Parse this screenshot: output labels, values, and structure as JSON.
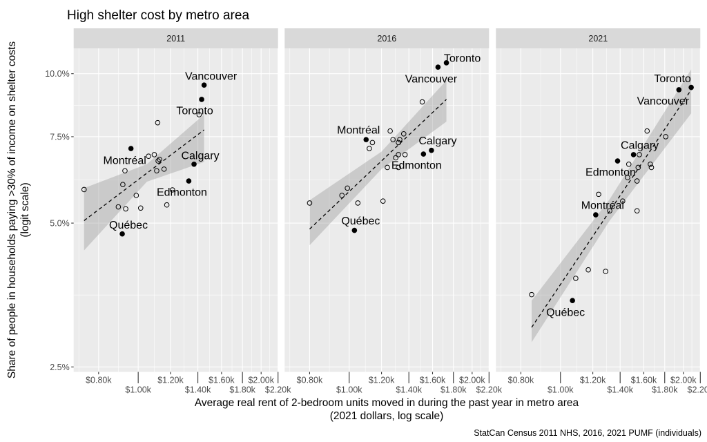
{
  "chart_data": {
    "type": "scatter",
    "title": "High shelter cost by metro area",
    "xlabel": [
      "Average real rent of 2-bedroom units moved in during the past year in metro area",
      "(2021 dollars, log scale)"
    ],
    "ylabel": [
      "Share of people in households paying >30% of income on shelter costs",
      "(logit scale)"
    ],
    "caption": "StatCan Census 2011 NHS, 2016, 2021 PUMF (individuals)",
    "x_scale": "log",
    "y_scale": "logit",
    "x_units": "thousand 2021 dollars",
    "y_units": "percent",
    "xlim": [
      0.695,
      2.2
    ],
    "ylim": [
      2.44,
      11.2
    ],
    "x_ticks": [
      {
        "value": 0.8,
        "label": "$0.80k"
      },
      {
        "value": 1.0,
        "label": "$1.00k"
      },
      {
        "value": 1.2,
        "label": "$1.20k"
      },
      {
        "value": 1.4,
        "label": "$1.40k"
      },
      {
        "value": 1.6,
        "label": "$1.60k"
      },
      {
        "value": 1.8,
        "label": "$1.80k"
      },
      {
        "value": 2.0,
        "label": "$2.00k"
      },
      {
        "value": 2.2,
        "label": "$2.20k"
      }
    ],
    "y_ticks": [
      {
        "value": 10.0,
        "label": "10.0%"
      },
      {
        "value": 7.5,
        "label": "7.5%"
      },
      {
        "value": 5.0,
        "label": "5.0%"
      },
      {
        "value": 2.5,
        "label": "2.5%"
      }
    ],
    "grid": true,
    "legend": "none",
    "facets": [
      {
        "label": "2011",
        "labeled_points": [
          {
            "name": "Vancouver",
            "x": 1.45,
            "y": 9.5
          },
          {
            "name": "Toronto",
            "x": 1.43,
            "y": 8.9
          },
          {
            "name": "Calgary",
            "x": 1.37,
            "y": 6.6
          },
          {
            "name": "Edmonton",
            "x": 1.33,
            "y": 6.1
          },
          {
            "name": "Montréal",
            "x": 0.96,
            "y": 7.1
          },
          {
            "name": "Québec",
            "x": 0.914,
            "y": 4.75
          }
        ],
        "other_points": [
          [
            0.737,
            5.86
          ],
          [
            1.116,
            8.0
          ],
          [
            1.41,
            8.3
          ],
          [
            1.06,
            6.85
          ],
          [
            1.095,
            6.9
          ],
          [
            1.128,
            6.75
          ],
          [
            1.119,
            6.7
          ],
          [
            0.928,
            6.4
          ],
          [
            1.11,
            6.4
          ],
          [
            1.157,
            6.45
          ],
          [
            0.917,
            6.0
          ],
          [
            0.989,
            5.7
          ],
          [
            1.213,
            5.85
          ],
          [
            0.894,
            5.4
          ],
          [
            0.932,
            5.35
          ],
          [
            1.014,
            5.37
          ],
          [
            1.175,
            5.45
          ]
        ],
        "fit": {
          "line": [
            [
              0.737,
              5.06
            ],
            [
              1.45,
              7.74
            ]
          ],
          "band": [
            {
              "x": 0.737,
              "lo": 4.39,
              "hi": 5.9
            },
            {
              "x": 1.05,
              "lo": 6.08,
              "hi": 6.6
            },
            {
              "x": 1.45,
              "lo": 6.67,
              "hi": 8.31
            }
          ]
        }
      },
      {
        "label": "2016",
        "labeled_points": [
          {
            "name": "Toronto",
            "x": 1.73,
            "y": 10.5
          },
          {
            "name": "Vancouver",
            "x": 1.65,
            "y": 10.3
          },
          {
            "name": "Calgary",
            "x": 1.59,
            "y": 7.04
          },
          {
            "name": "Edmonton",
            "x": 1.52,
            "y": 6.92
          },
          {
            "name": "Montréal",
            "x": 1.1,
            "y": 7.4
          },
          {
            "name": "Québec",
            "x": 1.03,
            "y": 4.83
          }
        ],
        "other_points": [
          [
            1.51,
            8.8
          ],
          [
            1.26,
            7.7
          ],
          [
            1.36,
            7.6
          ],
          [
            1.28,
            7.4
          ],
          [
            1.33,
            7.4
          ],
          [
            1.32,
            7.3
          ],
          [
            1.14,
            7.3
          ],
          [
            1.12,
            7.1
          ],
          [
            1.32,
            6.9
          ],
          [
            1.37,
            6.9
          ],
          [
            1.3,
            6.8
          ],
          [
            1.24,
            6.5
          ],
          [
            1.32,
            6.5
          ],
          [
            0.99,
            5.9
          ],
          [
            0.96,
            5.7
          ],
          [
            0.8,
            5.5
          ],
          [
            1.05,
            5.5
          ],
          [
            1.21,
            5.55
          ]
        ],
        "fit": {
          "line": [
            [
              0.8,
              4.86
            ],
            [
              1.73,
              8.9
            ]
          ],
          "band": [
            {
              "x": 0.8,
              "lo": 4.5,
              "hi": 5.57
            },
            {
              "x": 1.2,
              "lo": 6.45,
              "hi": 7.0
            },
            {
              "x": 1.73,
              "lo": 8.04,
              "hi": 9.7
            }
          ]
        }
      },
      {
        "label": "2021",
        "labeled_points": [
          {
            "name": "Toronto",
            "x": 2.09,
            "y": 9.4
          },
          {
            "name": "Vancouver",
            "x": 1.95,
            "y": 9.3
          },
          {
            "name": "Calgary",
            "x": 1.51,
            "y": 6.9
          },
          {
            "name": "Edmonton",
            "x": 1.38,
            "y": 6.7
          },
          {
            "name": "Montréal",
            "x": 1.22,
            "y": 5.2
          },
          {
            "name": "Québec",
            "x": 1.07,
            "y": 3.45
          }
        ],
        "other_points": [
          [
            1.63,
            7.7
          ],
          [
            1.81,
            7.5
          ],
          [
            1.56,
            6.9
          ],
          [
            1.47,
            6.6
          ],
          [
            1.66,
            6.6
          ],
          [
            1.67,
            6.5
          ],
          [
            1.55,
            6.5
          ],
          [
            1.46,
            6.2
          ],
          [
            1.54,
            6.1
          ],
          [
            1.24,
            5.73
          ],
          [
            1.42,
            5.55
          ],
          [
            1.32,
            5.3
          ],
          [
            1.54,
            5.3
          ],
          [
            1.17,
            4.0
          ],
          [
            1.29,
            3.97
          ],
          [
            1.09,
            3.84
          ],
          [
            0.85,
            3.55
          ]
        ],
        "fit": {
          "line": [
            [
              0.85,
              3.03
            ],
            [
              2.09,
              9.3
            ]
          ],
          "band": [
            {
              "x": 0.85,
              "lo": 2.82,
              "hi": 3.45
            },
            {
              "x": 1.32,
              "lo": 5.06,
              "hi": 5.6
            },
            {
              "x": 2.09,
              "lo": 8.35,
              "hi": 10.2
            }
          ]
        }
      }
    ]
  }
}
